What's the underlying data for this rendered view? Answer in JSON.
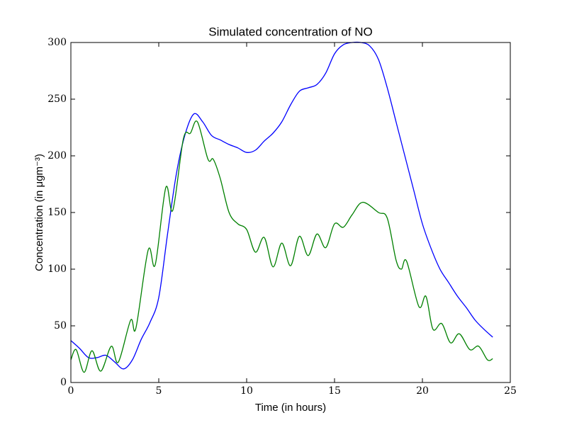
{
  "chart_data": {
    "type": "line",
    "title": "Simulated concentration of NO",
    "x_label": "Time (in hours)",
    "y_label": "Concentration (in μgm⁻³)",
    "xlim": [
      0,
      25
    ],
    "xticks": [
      0,
      5,
      10,
      15,
      20,
      25
    ],
    "ylim": [
      0,
      300
    ],
    "yticks": [
      0,
      50,
      100,
      150,
      200,
      250,
      300
    ],
    "series": [
      {
        "color": "#0000ff",
        "x": [
          0,
          0.5,
          1,
          1.5,
          2,
          2.5,
          3,
          3.5,
          4,
          4.5,
          5,
          5.5,
          6,
          6.5,
          7,
          7.5,
          8,
          8.5,
          9,
          9.5,
          10,
          10.5,
          11,
          11.5,
          12,
          12.5,
          13,
          13.5,
          14,
          14.5,
          15,
          15.5,
          16,
          16.5,
          17,
          17.5,
          18,
          18.5,
          19,
          19.5,
          20,
          20.5,
          21,
          21.5,
          22,
          22.5,
          23,
          23.5,
          24
        ],
        "values": [
          37,
          30,
          22,
          22,
          24,
          18,
          12,
          20,
          38,
          53,
          75,
          131,
          184,
          219,
          237,
          230,
          218,
          214,
          210,
          207,
          203,
          205,
          213,
          220,
          230,
          245,
          257,
          260,
          263,
          273,
          290,
          298,
          300,
          300,
          297,
          285,
          260,
          230,
          200,
          170,
          140,
          118,
          100,
          88,
          76,
          66,
          55,
          47,
          40
        ]
      },
      {
        "color": "#008000",
        "x": [
          0,
          0.3,
          0.75,
          1.2,
          1.7,
          2.3,
          2.7,
          3.4,
          3.7,
          4.4,
          4.8,
          5.4,
          5.8,
          6.4,
          6.8,
          7.2,
          7.8,
          8.1,
          8.5,
          9,
          9.5,
          10,
          10.5,
          11,
          11.5,
          12,
          12.5,
          13,
          13.5,
          14,
          14.5,
          15,
          15.5,
          16,
          16.6,
          17.5,
          18,
          18.5,
          18.8,
          19.1,
          19.8,
          20.2,
          20.6,
          21.1,
          21.6,
          22.1,
          22.7,
          23.2,
          23.7,
          24
        ],
        "values": [
          20,
          29,
          9,
          28,
          10,
          32,
          18,
          55,
          48,
          117,
          104,
          172,
          152,
          215,
          220,
          230,
          197,
          197,
          180,
          150,
          140,
          135,
          115,
          128,
          102,
          123,
          103,
          129,
          112,
          131,
          119,
          140,
          137,
          148,
          159,
          150,
          145,
          108,
          100,
          107,
          67,
          76,
          47,
          52,
          35,
          43,
          29,
          32,
          20,
          21
        ]
      }
    ]
  }
}
